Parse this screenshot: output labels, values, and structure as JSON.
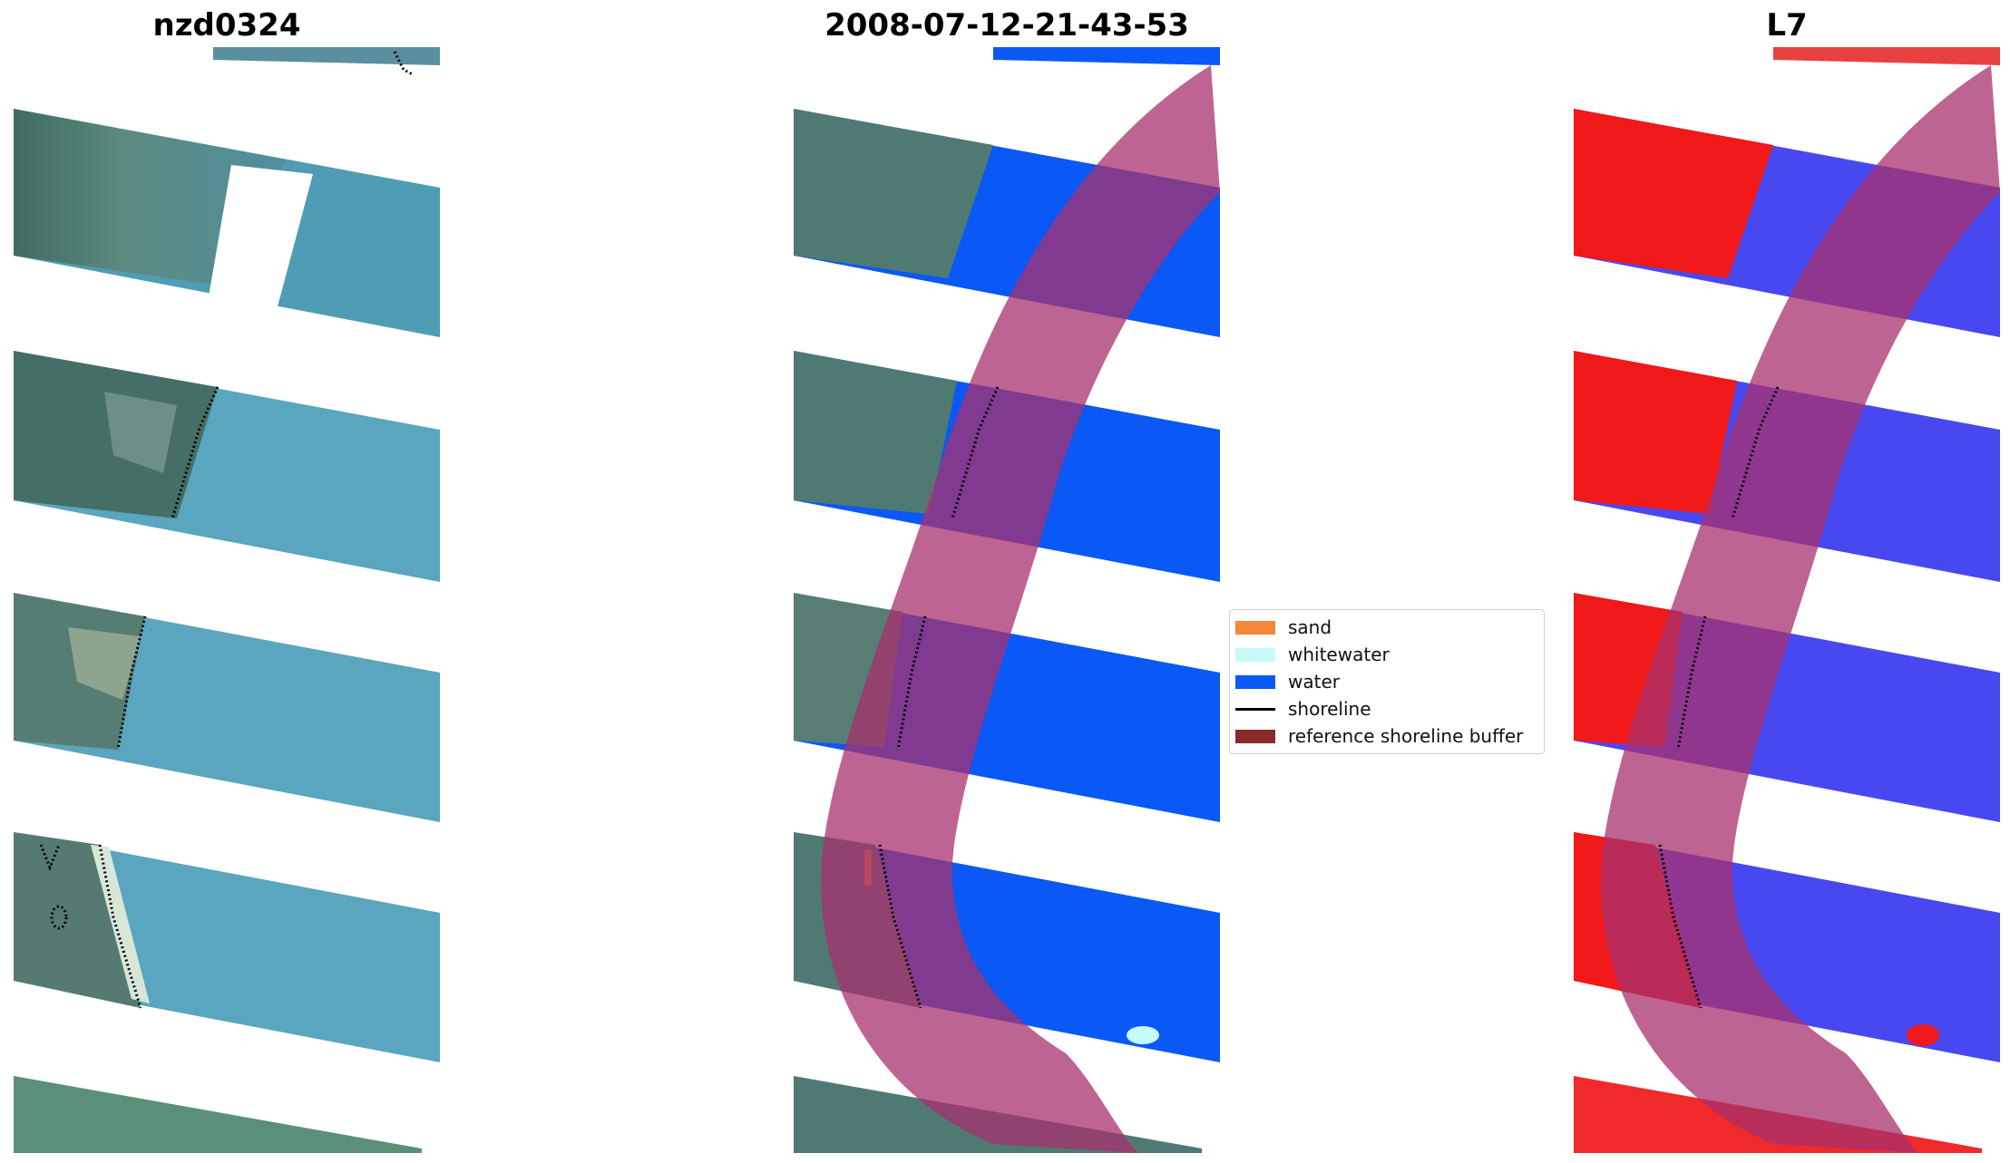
{
  "panels": [
    {
      "title": "nzd0324",
      "type": "rgb-image"
    },
    {
      "title": "2008-07-12-21-43-53",
      "type": "classified-image"
    },
    {
      "title": "L7",
      "type": "index-image"
    }
  ],
  "legend": {
    "items": [
      {
        "label": "sand",
        "color": "#f5873a",
        "kind": "patch"
      },
      {
        "label": "whitewater",
        "color": "#c7fbfb",
        "kind": "patch"
      },
      {
        "label": "water",
        "color": "#0a58f5",
        "kind": "patch"
      },
      {
        "label": "shoreline",
        "color": "#000000",
        "kind": "line"
      },
      {
        "label": "reference shoreline buffer",
        "color": "#8b2a2a",
        "kind": "patch"
      }
    ]
  },
  "colors": {
    "land_rgb": "#4f7a73",
    "sea_rgb": "#4f9cb5",
    "water_class": "#0a58f5",
    "buffer": "#a8306e",
    "index_red": "#f01818",
    "index_blue": "#4848f0"
  }
}
